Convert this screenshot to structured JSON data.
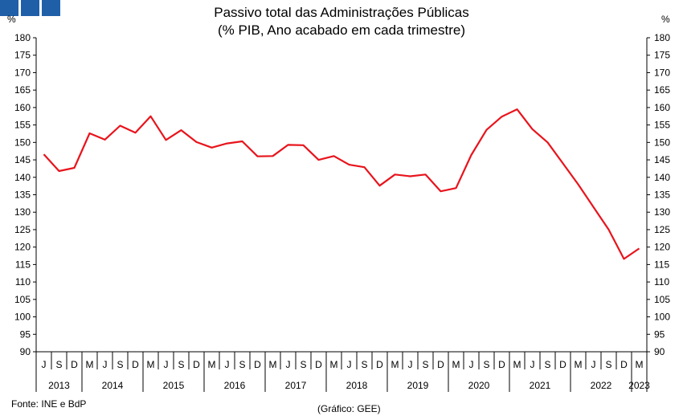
{
  "logo": {
    "squares": [
      "square",
      "square",
      "square"
    ],
    "color": "#1f5fa8"
  },
  "title_line1": "Passivo total das Administrações Públicas",
  "title_line2": "(% PIB, Ano acabado em cada trimestre)",
  "unit_left": "%",
  "unit_right": "%",
  "source": "Fonte: INE e BdP",
  "credit": "(Gráfico: GEE)",
  "chart_data": {
    "type": "line",
    "title": "Passivo total das Administrações Públicas",
    "subtitle": "(% PIB, Ano acabado em cada trimestre)",
    "ylabel": "%",
    "ylim": [
      90,
      180
    ],
    "yticks": [
      90,
      95,
      100,
      105,
      110,
      115,
      120,
      125,
      130,
      135,
      140,
      145,
      150,
      155,
      160,
      165,
      170,
      175,
      180
    ],
    "grid": false,
    "line_color": "#e8141c",
    "quarter_labels": [
      "J",
      "S",
      "D",
      "M",
      "J",
      "S",
      "D",
      "M",
      "J",
      "S",
      "D",
      "M",
      "J",
      "S",
      "D",
      "M",
      "J",
      "S",
      "D",
      "M",
      "J",
      "S",
      "D",
      "M",
      "J",
      "S",
      "D",
      "M",
      "J",
      "S",
      "D",
      "M",
      "J",
      "S",
      "D",
      "M",
      "J",
      "S",
      "D",
      "M"
    ],
    "year_groups": [
      {
        "label": "2013",
        "count": 3
      },
      {
        "label": "2014",
        "count": 4
      },
      {
        "label": "2015",
        "count": 4
      },
      {
        "label": "2016",
        "count": 4
      },
      {
        "label": "2017",
        "count": 4
      },
      {
        "label": "2018",
        "count": 4
      },
      {
        "label": "2019",
        "count": 4
      },
      {
        "label": "2020",
        "count": 4
      },
      {
        "label": "2021",
        "count": 4
      },
      {
        "label": "2022",
        "count": 4
      },
      {
        "label": "2023",
        "count": 1
      }
    ],
    "series": [
      {
        "values": [
          146.6,
          141.8,
          142.7,
          152.6,
          150.8,
          154.8,
          152.8,
          157.5,
          150.7,
          153.5,
          150.1,
          148.5,
          149.7,
          150.3,
          146.0,
          146.1,
          149.3,
          149.2,
          145.0,
          146.1,
          143.6,
          142.9,
          137.6,
          140.8,
          140.3,
          140.8,
          136.0,
          136.9,
          146.4,
          153.6,
          157.4,
          159.5,
          153.8,
          150.0,
          144.0,
          138.0,
          131.5,
          125.0,
          116.6,
          119.6
        ]
      }
    ]
  }
}
